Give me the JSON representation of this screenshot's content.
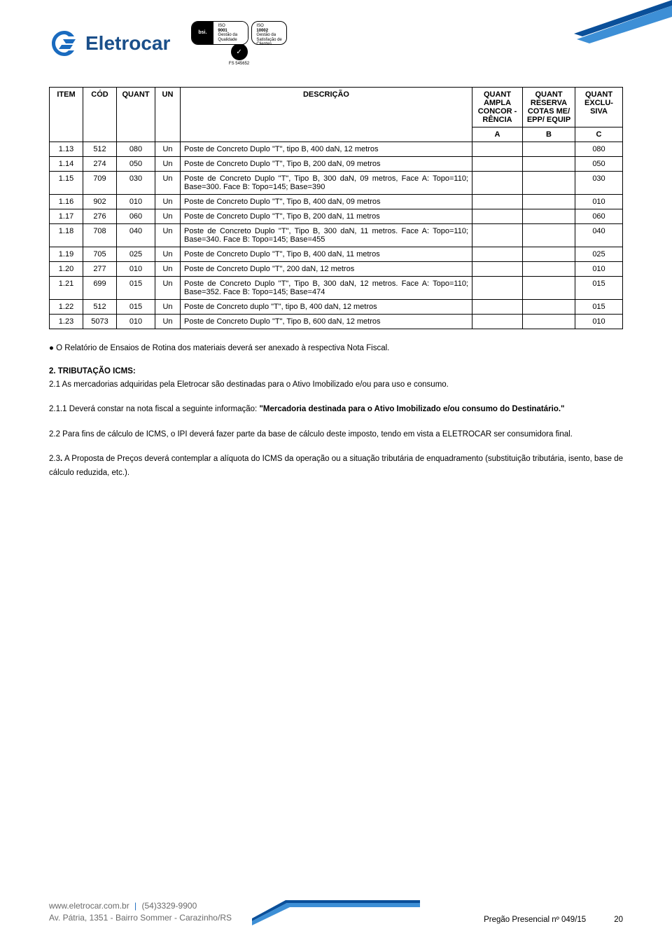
{
  "brand": {
    "name": "Eletrocar",
    "logo_color": "#1a6bbf",
    "cert_bsi": "bsi.",
    "cert_check": "✓",
    "cert1_line1": "ISO",
    "cert1_line2": "9001",
    "cert1_line3": "Gestão da",
    "cert1_line4": "Qualidade",
    "cert2_line1": "ISO",
    "cert2_line2": "10002",
    "cert2_line3": "Gestão da",
    "cert2_line4": "Satisfação de",
    "cert2_line5": "Clientes",
    "cert_number": "FS 545652"
  },
  "table": {
    "headers": {
      "item": "ITEM",
      "cod": "CÓD",
      "quant": "QUANT",
      "un": "UN",
      "desc": "DESCRIÇÃO",
      "a_full": "QUANT AMPLA CONCOR -RÊNCIA",
      "b_full": "QUANT RESERVA COTAS ME/ EPP/ EQUIP",
      "c_full": "QUANT EXCLU- SIVA",
      "a": "A",
      "b": "B",
      "c": "C"
    },
    "rows": [
      {
        "item": "1.13",
        "cod": "512",
        "quant": "080",
        "un": "Un",
        "desc": "Poste de Concreto Duplo \"T\", tipo B, 400 daN, 12 metros",
        "a": "",
        "b": "",
        "c": "080"
      },
      {
        "item": "1.14",
        "cod": "274",
        "quant": "050",
        "un": "Un",
        "desc": "Poste de Concreto Duplo \"T\", Tipo B, 200 daN, 09 metros",
        "a": "",
        "b": "",
        "c": "050"
      },
      {
        "item": "1.15",
        "cod": "709",
        "quant": "030",
        "un": "Un",
        "desc": "Poste de Concreto Duplo \"T\", Tipo B, 300 daN, 09 metros, Face A: Topo=110; Base=300. Face B: Topo=145; Base=390",
        "a": "",
        "b": "",
        "c": "030"
      },
      {
        "item": "1.16",
        "cod": "902",
        "quant": "010",
        "un": "Un",
        "desc": "Poste de Concreto Duplo \"T\", Tipo B, 400 daN, 09 metros",
        "a": "",
        "b": "",
        "c": "010"
      },
      {
        "item": "1.17",
        "cod": "276",
        "quant": "060",
        "un": "Un",
        "desc": "Poste de Concreto Duplo \"T\", Tipo B, 200 daN, 11 metros",
        "a": "",
        "b": "",
        "c": "060"
      },
      {
        "item": "1.18",
        "cod": "708",
        "quant": "040",
        "un": "Un",
        "desc": "Poste de Concreto Duplo \"T\", Tipo B, 300 daN, 11 metros. Face A: Topo=110; Base=340. Face B: Topo=145; Base=455",
        "a": "",
        "b": "",
        "c": "040"
      },
      {
        "item": "1.19",
        "cod": "705",
        "quant": "025",
        "un": "Un",
        "desc": "Poste de Concreto Duplo \"T\", Tipo B, 400 daN, 11 metros",
        "a": "",
        "b": "",
        "c": "025"
      },
      {
        "item": "1.20",
        "cod": "277",
        "quant": "010",
        "un": "Un",
        "desc": "Poste de Concreto Duplo \"T\", 200 daN, 12 metros",
        "a": "",
        "b": "",
        "c": "010"
      },
      {
        "item": "1.21",
        "cod": "699",
        "quant": "015",
        "un": "Un",
        "desc": "Poste de Concreto Duplo \"T\", Tipo B, 300 daN, 12 metros. Face A: Topo=110; Base=352. Face B: Topo=145; Base=474",
        "a": "",
        "b": "",
        "c": "015"
      },
      {
        "item": "1.22",
        "cod": "512",
        "quant": "015",
        "un": "Un",
        "desc": "Poste de Concreto duplo \"T\", tipo B, 400 daN, 12 metros",
        "a": "",
        "b": "",
        "c": "015"
      },
      {
        "item": "1.23",
        "cod": "5073",
        "quant": "010",
        "un": "Un",
        "desc": "Poste de Concreto Duplo \"T\", Tipo B, 600 daN, 12 metros",
        "a": "",
        "b": "",
        "c": "010"
      }
    ]
  },
  "text": {
    "bullet1": "O Relatório de Ensaios de Rotina dos materiais deverá ser anexado à respectiva Nota Fiscal.",
    "sec2_title": "2. TRIBUTAÇÃO ICMS:",
    "p21": "2.1 As mercadorias adquiridas pela Eletrocar são destinadas para o Ativo Imobilizado e/ou para uso e consumo.",
    "p211_a": "2.1.1 Deverá constar na nota fiscal a seguinte informação: ",
    "p211_b": "\"Mercadoria destinada para o Ativo Imobilizado e/ou consumo do Destinatário.\"",
    "p22": "2.2 Para fins de cálculo de ICMS, o IPI deverá fazer parte da base de cálculo deste imposto, tendo em vista a ELETROCAR ser consumidora final.",
    "p23_a": "2.3",
    "p23_b": ". A Proposta de Preços deverá contemplar a alíquota do ICMS da operação ou a situação tributária de enquadramento (substituição tributária, isento, base de cálculo reduzida, etc.)."
  },
  "footer": {
    "site": "www.eletrocar.com.br",
    "phone": "(54)3329-9900",
    "address": "Av. Pátria, 1351 - Bairro Sommer - Carazinho/RS",
    "doc": "Pregão Presencial nº 049/15",
    "page": "20",
    "accent_color_dark": "#0a4f99",
    "accent_color_light": "#3d8fd6"
  }
}
